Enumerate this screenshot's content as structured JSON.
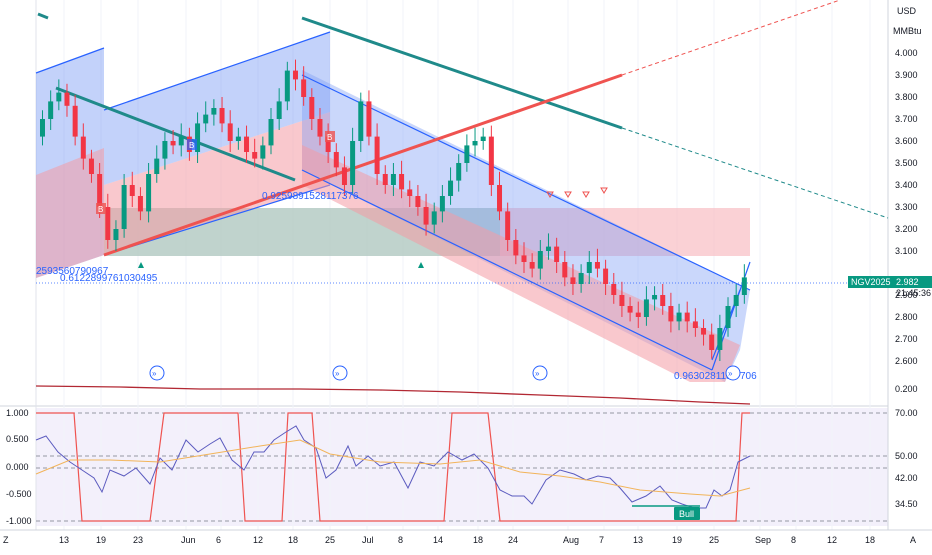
{
  "header": {
    "currency": "USD",
    "unit": "MMBtu"
  },
  "price_axis": {
    "ticks": [
      "4.000",
      "3.900",
      "3.800",
      "3.700",
      "3.600",
      "3.500",
      "3.400",
      "3.300",
      "3.200",
      "3.100",
      "2.900",
      "2.800",
      "2.700",
      "2.600",
      "0.200"
    ],
    "ticks_values": [
      4.0,
      3.9,
      3.8,
      3.7,
      3.6,
      3.5,
      3.4,
      3.3,
      3.2,
      3.1,
      2.9,
      2.8,
      2.7,
      2.6
    ]
  },
  "last_price": {
    "symbol": "NGV2025",
    "value": "2.982",
    "countdown": "21:45:36"
  },
  "osc_axis_left": [
    "1.000",
    "0.500",
    "0.000",
    "-0.500",
    "-1.000"
  ],
  "osc_axis_right": [
    "70.00",
    "50.00",
    "42.00",
    "34.50"
  ],
  "time_axis": {
    "labels": [
      "13",
      "19",
      "23",
      "Jun",
      "6",
      "12",
      "18",
      "25",
      "Jul",
      "8",
      "14",
      "18",
      "24",
      "Aug",
      "7",
      "13",
      "19",
      "25",
      "Sep",
      "8",
      "12",
      "18"
    ],
    "corner_left": "Z",
    "corner_right": "A"
  },
  "annotations": {
    "fib_top": "0.9259891528117376",
    "fib_left_a": "2593560790967",
    "fib_left_b": "0.6122899761030495",
    "fib_bottom_a": "0.9630281152",
    "fib_bottom_b": "706",
    "bull_label": "Bull",
    "marker_b": "B"
  },
  "colors": {
    "up": "#089981",
    "down": "#f23645",
    "blue": "#2962ff",
    "teal_line": "#1f8a8a",
    "red_line": "#ef5350",
    "green_label": "#089981"
  },
  "chart_data": {
    "type": "candlestick",
    "x": [
      "May 13",
      "May 19",
      "May 23",
      "Jun 2",
      "Jun 6",
      "Jun 12",
      "Jun 18",
      "Jun 25",
      "Jul 1",
      "Jul 8",
      "Jul 14",
      "Jul 18",
      "Jul 24",
      "Aug 1",
      "Aug 7",
      "Aug 13",
      "Aug 19",
      "Aug 25"
    ],
    "close": [
      3.65,
      3.25,
      3.55,
      3.62,
      3.75,
      3.6,
      3.95,
      3.55,
      3.6,
      3.38,
      3.28,
      3.6,
      3.1,
      2.98,
      3.02,
      2.82,
      2.8,
      2.98
    ],
    "ylim": [
      2.55,
      4.12
    ],
    "last": 2.982,
    "oscillator": {
      "ylim": [
        -1,
        1
      ],
      "reference_levels": [
        1.0,
        0.5,
        0.0,
        -0.5,
        -1.0
      ]
    }
  }
}
